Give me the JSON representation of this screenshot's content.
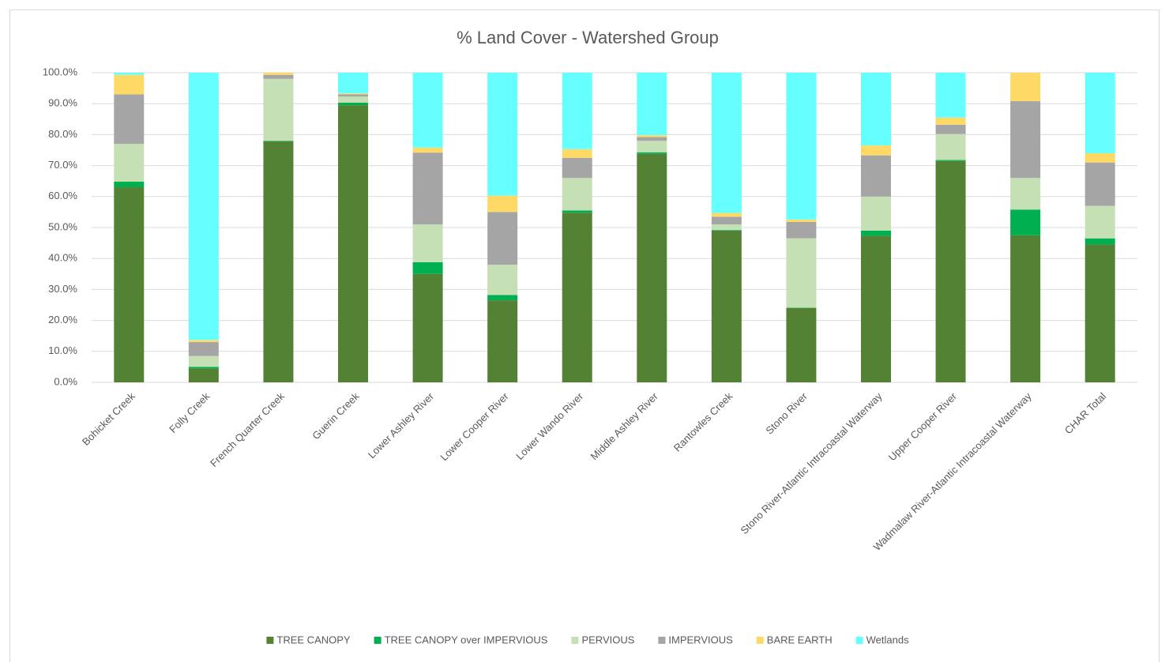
{
  "chart_data": {
    "type": "stacked_bar",
    "title": "% Land Cover - Watershed Group",
    "categories": [
      "Bohicket Creek",
      "Folly Creek",
      "French Quarter Creek",
      "Guerin Creek",
      "Lower Ashley River",
      "Lower Cooper River",
      "Lower Wando River",
      "Middle Ashley River",
      "Rantowles Creek",
      "Stono River",
      "Stono River-Atlantic Intracoastal Waterway",
      "Upper Cooper River",
      "Wadmalaw River-Atlantic Intracoastal Waterway",
      "CHAR Total"
    ],
    "series": [
      {
        "name": "TREE CANOPY",
        "color": "#548235",
        "values": [
          63,
          4.5,
          77.8,
          89.5,
          35,
          26.5,
          54.8,
          73.8,
          49,
          24,
          47.3,
          71.5,
          47.5,
          44.5
        ]
      },
      {
        "name": "TREE CANOPY over IMPERVIOUS",
        "color": "#00b050",
        "values": [
          1.8,
          0.5,
          0.2,
          0.8,
          3.8,
          1.7,
          0.7,
          0.5,
          0.2,
          0.1,
          1.7,
          0.3,
          8.3,
          2
        ]
      },
      {
        "name": "PERVIOUS",
        "color": "#c5e0b4",
        "values": [
          12.2,
          3.5,
          20,
          2,
          12.2,
          9.8,
          10.5,
          3.7,
          1.8,
          22.4,
          11,
          8.4,
          10.2,
          10.5
        ]
      },
      {
        "name": "IMPERVIOUS",
        "color": "#a5a5a5",
        "values": [
          16,
          4.5,
          1.3,
          0.7,
          23.2,
          17,
          6.5,
          1.2,
          2.5,
          5.3,
          13.3,
          3,
          24.8,
          14
        ]
      },
      {
        "name": "BARE EARTH",
        "color": "#ffd966",
        "values": [
          6.3,
          0.7,
          0.7,
          0.3,
          1.6,
          5.3,
          2.8,
          0.6,
          1.2,
          0.8,
          3.2,
          2.3,
          9.2,
          3
        ]
      },
      {
        "name": "Wetlands",
        "color": "#66ffff",
        "values": [
          0.7,
          86.3,
          0,
          6.7,
          24.2,
          39.7,
          24.7,
          20.2,
          45.3,
          47.4,
          23.5,
          14.5,
          0,
          26
        ]
      }
    ],
    "ylim": [
      0,
      100
    ],
    "yticks": [
      {
        "value": 0,
        "label": "0.0%"
      },
      {
        "value": 10,
        "label": "10.0%"
      },
      {
        "value": 20,
        "label": "20.0%"
      },
      {
        "value": 30,
        "label": "30.0%"
      },
      {
        "value": 40,
        "label": "40.0%"
      },
      {
        "value": 50,
        "label": "50.0%"
      },
      {
        "value": 60,
        "label": "60.0%"
      },
      {
        "value": 70,
        "label": "70.0%"
      },
      {
        "value": 80,
        "label": "80.0%"
      },
      {
        "value": 90,
        "label": "90.0%"
      },
      {
        "value": 100,
        "label": "100.0%"
      }
    ],
    "grid": true,
    "legend": "bottom"
  }
}
